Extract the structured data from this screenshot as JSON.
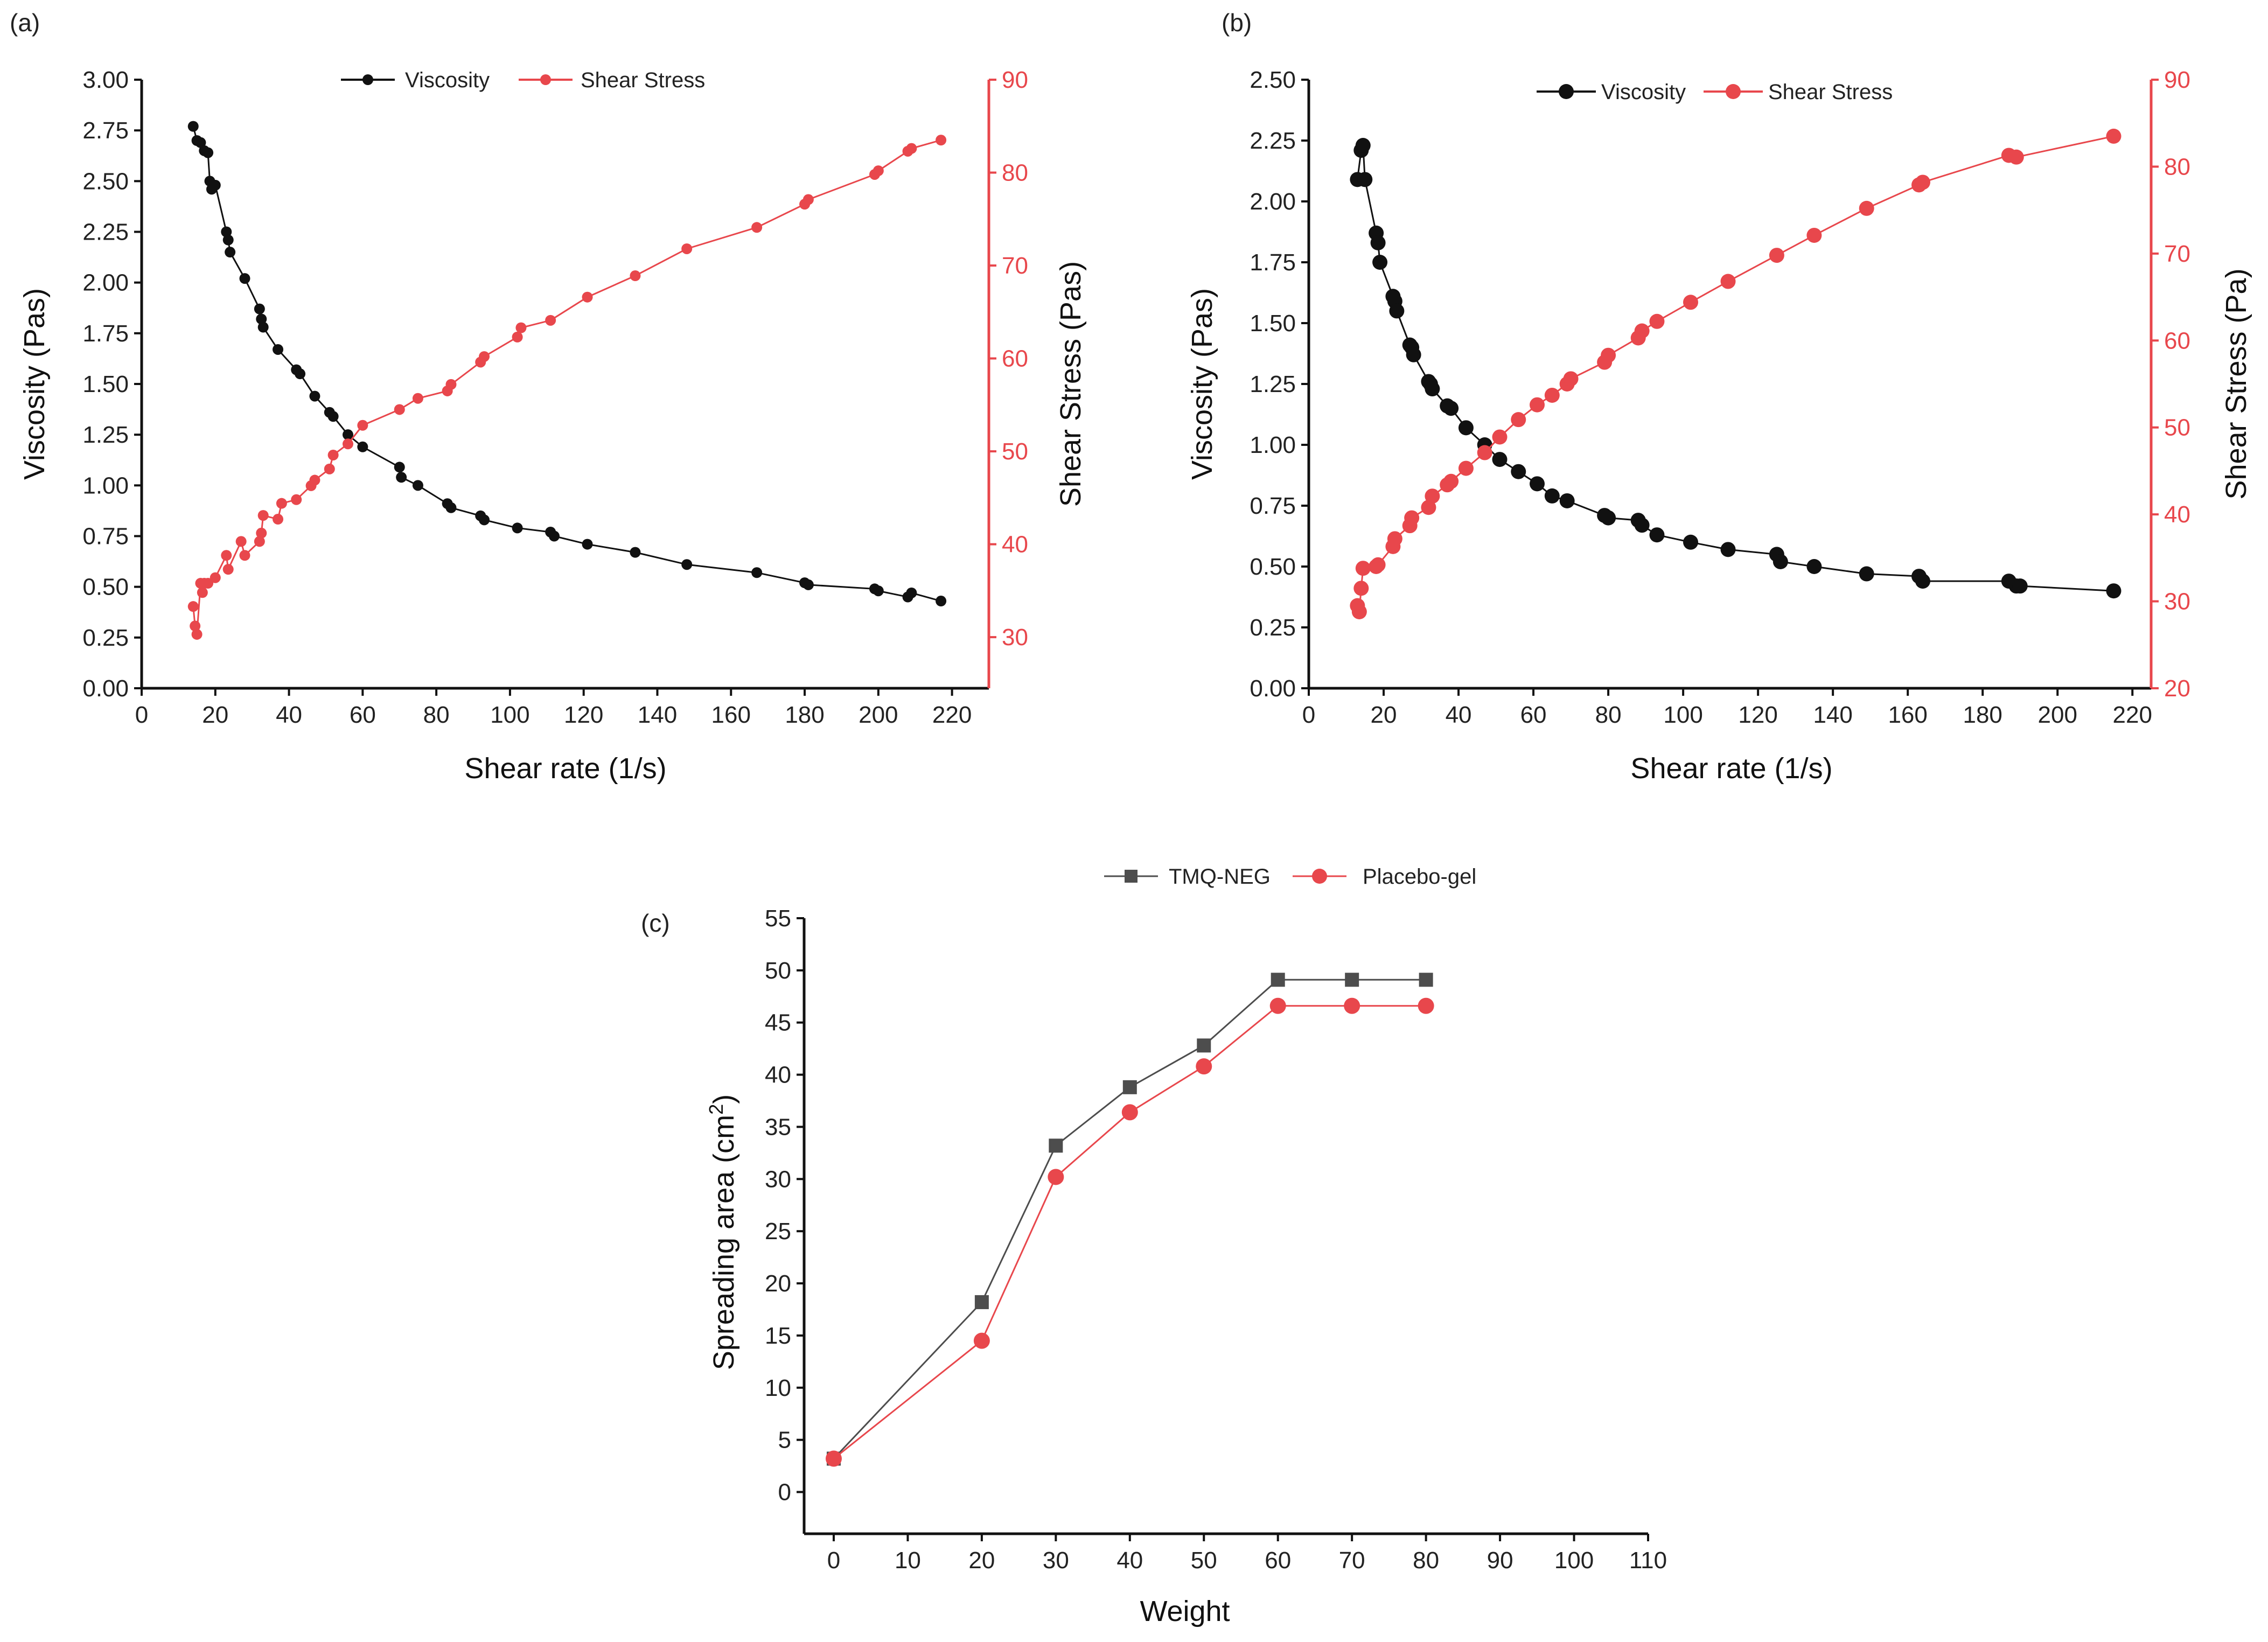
{
  "colors": {
    "black_series": "#111111",
    "red_series": "#e8474c",
    "gray_series": "#4d4d4d",
    "axis": "#111111"
  },
  "chart_data": [
    {
      "panel_label": "(a)",
      "type": "line",
      "xlabel": "Shear rate (1/s)",
      "ylabel_left": "Viscosity (Pas)",
      "ylabel_right": "Shear Stress (Pas)",
      "xlim": [
        0,
        230
      ],
      "ylim_left": [
        0,
        3.0
      ],
      "ylim_right": [
        24.5,
        90
      ],
      "xticks": [
        "0",
        "20",
        "40",
        "60",
        "80",
        "100",
        "120",
        "140",
        "160",
        "180",
        "200",
        "220"
      ],
      "yticks_left": [
        "0.00",
        "0.25",
        "0.50",
        "0.75",
        "1.00",
        "1.25",
        "1.50",
        "1.75",
        "2.00",
        "2.25",
        "2.50",
        "2.75",
        "3.00"
      ],
      "yticks_right": [
        "30",
        "40",
        "50",
        "60",
        "70",
        "80",
        "90"
      ],
      "legend": [
        "Viscosity",
        "Shear Stress"
      ],
      "series": [
        {
          "name": "Viscosity",
          "axis": "left",
          "color": "black_series",
          "x": [
            14,
            15,
            16,
            17,
            18,
            18.5,
            19,
            20,
            23,
            23.5,
            24,
            28,
            32,
            32.5,
            33,
            37,
            42,
            43,
            47,
            51,
            52,
            56,
            60,
            70,
            70.5,
            75,
            83,
            84,
            92,
            93,
            102,
            111,
            112,
            121,
            134,
            148,
            167,
            180,
            181,
            199,
            200,
            208,
            209,
            217
          ],
          "y": [
            2.77,
            2.7,
            2.69,
            2.65,
            2.64,
            2.5,
            2.46,
            2.48,
            2.25,
            2.21,
            2.15,
            2.02,
            1.87,
            1.82,
            1.78,
            1.67,
            1.57,
            1.55,
            1.44,
            1.36,
            1.34,
            1.25,
            1.19,
            1.09,
            1.04,
            1.0,
            0.91,
            0.89,
            0.85,
            0.83,
            0.79,
            0.77,
            0.75,
            0.71,
            0.67,
            0.61,
            0.57,
            0.52,
            0.51,
            0.49,
            0.48,
            0.45,
            0.47,
            0.43
          ]
        },
        {
          "name": "Shear Stress",
          "axis": "right",
          "color": "red_series",
          "x": [
            14,
            14.5,
            15,
            16,
            16.5,
            17,
            18,
            20,
            23,
            23.5,
            27,
            28,
            32,
            32.5,
            33,
            37,
            38,
            42,
            46,
            47,
            51,
            52,
            56,
            60,
            70,
            75,
            83,
            84,
            92,
            93,
            102,
            103,
            111,
            121,
            134,
            148,
            167,
            180,
            181,
            199,
            200,
            208,
            209,
            217
          ],
          "y": [
            33.3,
            31.2,
            30.3,
            35.8,
            34.8,
            35.8,
            35.8,
            36.4,
            38.8,
            37.3,
            40.3,
            38.8,
            40.3,
            41.2,
            43.1,
            42.7,
            44.4,
            44.8,
            46.3,
            46.9,
            48.1,
            49.6,
            50.8,
            52.8,
            54.5,
            55.7,
            56.5,
            57.2,
            59.6,
            60.2,
            62.3,
            63.3,
            64.1,
            66.6,
            68.9,
            71.8,
            74.1,
            76.6,
            77.1,
            79.8,
            80.2,
            82.3,
            82.6,
            83.5
          ]
        }
      ]
    },
    {
      "panel_label": "(b)",
      "type": "line",
      "xlabel": "Shear rate (1/s)",
      "ylabel_left": "Viscosity (Pas)",
      "ylabel_right": "Shear Stress (Pa)",
      "xlim": [
        0,
        225
      ],
      "ylim_left": [
        0,
        2.5
      ],
      "ylim_right": [
        20,
        90
      ],
      "xticks": [
        "0",
        "20",
        "40",
        "60",
        "80",
        "100",
        "120",
        "140",
        "160",
        "180",
        "200",
        "220"
      ],
      "yticks_left": [
        "0.00",
        "0.25",
        "0.50",
        "0.75",
        "1.00",
        "1.25",
        "1.50",
        "1.75",
        "2.00",
        "2.25",
        "2.50"
      ],
      "yticks_right": [
        "20",
        "30",
        "40",
        "50",
        "60",
        "70",
        "80",
        "90"
      ],
      "legend": [
        "Viscosity",
        "Shear Stress"
      ],
      "series": [
        {
          "name": "Viscosity",
          "axis": "left",
          "color": "black_series",
          "x": [
            13,
            14,
            14.5,
            15,
            18,
            18.5,
            19,
            22.5,
            23,
            23.5,
            27,
            27.5,
            28,
            32,
            32.5,
            33,
            37,
            38,
            42,
            47,
            51,
            56,
            61,
            65,
            69,
            79,
            80,
            88,
            89,
            93,
            102,
            112,
            125,
            126,
            135,
            149,
            163,
            164,
            187,
            189,
            190,
            215
          ],
          "y": [
            2.09,
            2.21,
            2.23,
            2.09,
            1.87,
            1.83,
            1.75,
            1.61,
            1.59,
            1.55,
            1.41,
            1.4,
            1.37,
            1.26,
            1.25,
            1.23,
            1.16,
            1.15,
            1.07,
            1.0,
            0.94,
            0.89,
            0.84,
            0.79,
            0.77,
            0.71,
            0.7,
            0.69,
            0.67,
            0.63,
            0.6,
            0.57,
            0.55,
            0.52,
            0.5,
            0.47,
            0.46,
            0.44,
            0.44,
            0.42,
            0.42,
            0.4
          ]
        },
        {
          "name": "Shear Stress",
          "axis": "right",
          "color": "red_series",
          "x": [
            13,
            13.5,
            14,
            14.5,
            18,
            18.5,
            22.5,
            23,
            27,
            27.5,
            32,
            33,
            37,
            38,
            42,
            47,
            51,
            56,
            61,
            65,
            69,
            70,
            79,
            80,
            88,
            89,
            93,
            102,
            112,
            125,
            135,
            149,
            163,
            164,
            187,
            189,
            215
          ],
          "y": [
            29.5,
            28.8,
            31.5,
            33.8,
            34.0,
            34.2,
            36.3,
            37.2,
            38.7,
            39.6,
            40.8,
            42.1,
            43.4,
            43.8,
            45.3,
            47.1,
            48.9,
            50.9,
            52.6,
            53.7,
            55.0,
            55.6,
            57.5,
            58.3,
            60.3,
            61.1,
            62.2,
            64.4,
            66.8,
            69.8,
            72.1,
            75.2,
            77.9,
            78.2,
            81.3,
            81.1,
            83.5
          ]
        }
      ]
    },
    {
      "panel_label": "(c)",
      "type": "line",
      "xlabel": "Weight",
      "ylabel": "Spreading area (cm",
      "ylabel_sup": "2",
      "ylabel_close": ")",
      "xlim": [
        -4,
        110
      ],
      "ylim": [
        -4,
        55
      ],
      "xticks": [
        "0",
        "10",
        "20",
        "30",
        "40",
        "50",
        "60",
        "70",
        "80",
        "90",
        "100",
        "110"
      ],
      "yticks": [
        "0",
        "5",
        "10",
        "15",
        "20",
        "25",
        "30",
        "35",
        "40",
        "45",
        "50",
        "55"
      ],
      "legend": [
        "TMQ-NEG",
        "Placebo-gel"
      ],
      "categories": [
        0,
        20,
        30,
        40,
        50,
        60,
        70,
        80
      ],
      "series": [
        {
          "name": "TMQ-NEG",
          "marker": "square",
          "color": "gray_series",
          "values": [
            3.2,
            18.2,
            33.2,
            38.8,
            42.8,
            49.1,
            49.1,
            49.1
          ]
        },
        {
          "name": "Placebo-gel",
          "marker": "circle",
          "color": "red_series",
          "values": [
            3.2,
            14.5,
            30.2,
            36.4,
            40.8,
            46.6,
            46.6,
            46.6
          ]
        }
      ]
    }
  ]
}
